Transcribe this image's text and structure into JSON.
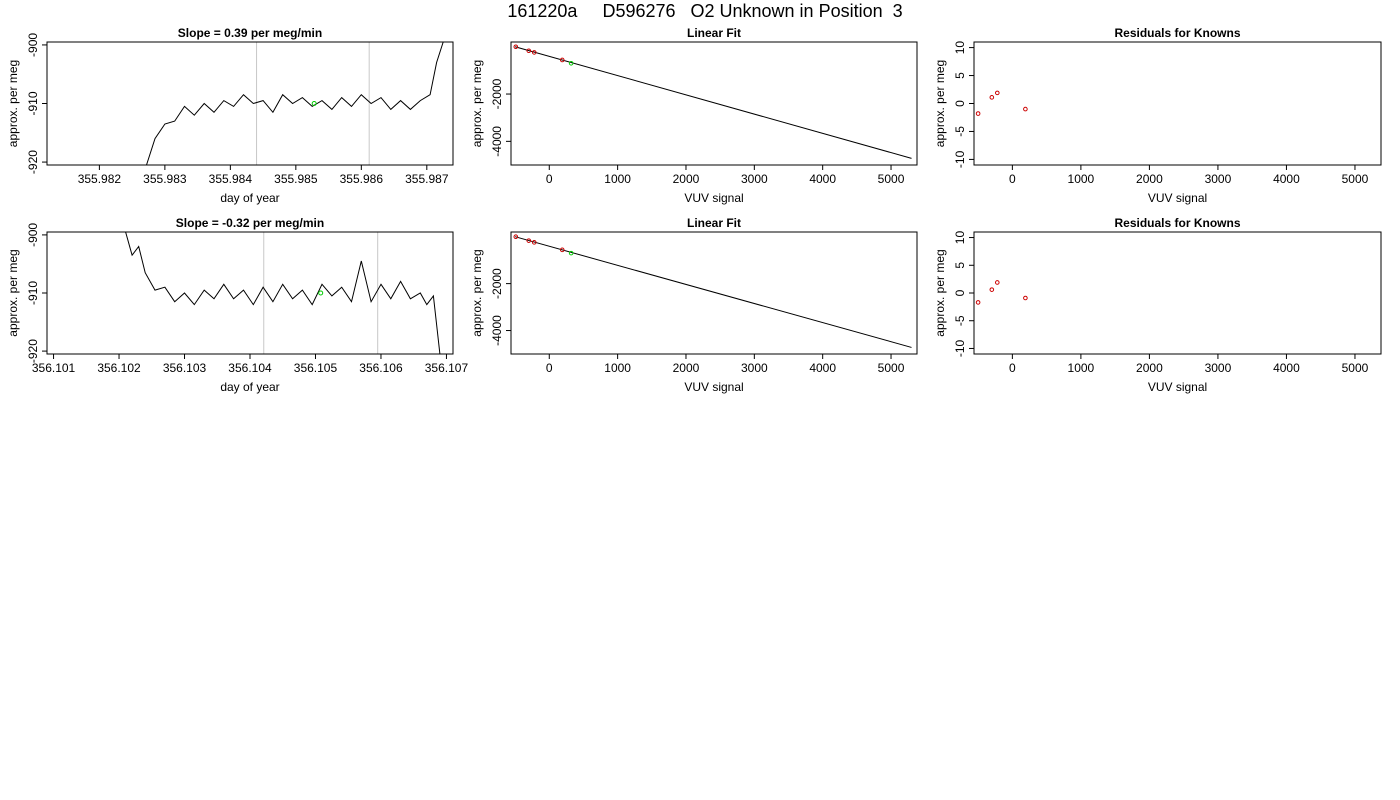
{
  "page": {
    "title": "161220a     D596276   O2 Unknown in Position  3"
  },
  "chart_data": [
    {
      "type": "line",
      "title": "Slope =  0.39  per meg/min",
      "xlabel": "day of year",
      "ylabel": "approx. per meg",
      "xlim": [
        355.9812,
        355.9874
      ],
      "ylim": [
        -920.5,
        -899.5
      ],
      "x_ticks": [
        355.982,
        355.983,
        355.984,
        355.985,
        355.986,
        355.987
      ],
      "x_tick_labels": [
        "355.982",
        "355.983",
        "355.984",
        "355.985",
        "355.986",
        "355.987"
      ],
      "y_ticks": [
        -920,
        -910,
        -900
      ],
      "y_tick_labels": [
        "-920",
        "-910",
        "-900"
      ],
      "vlines": [
        355.9844,
        355.98612
      ],
      "highlight_point": {
        "x": 355.98528,
        "y": -910
      },
      "series": [
        {
          "values_x": [
            355.98272,
            355.98285,
            355.983,
            355.98315,
            355.9833,
            355.98345,
            355.9836,
            355.98375,
            355.9839,
            355.98405,
            355.9842,
            355.98435,
            355.9845,
            355.98465,
            355.9848,
            355.98495,
            355.9851,
            355.98525,
            355.9854,
            355.98555,
            355.9857,
            355.98585,
            355.986,
            355.98615,
            355.9863,
            355.98645,
            355.9866,
            355.98675,
            355.9869,
            355.98705,
            355.98715,
            355.98725
          ],
          "values_y": [
            -920.5,
            -916,
            -913.5,
            -913,
            -910.5,
            -912,
            -910,
            -911.5,
            -909.5,
            -910.5,
            -908.5,
            -910,
            -909.5,
            -911.5,
            -908.5,
            -910,
            -909,
            -910.5,
            -909.5,
            -911,
            -909,
            -910.5,
            -908.5,
            -910,
            -909,
            -911,
            -909.5,
            -911,
            -909.5,
            -908.5,
            -903,
            -899.5
          ]
        }
      ]
    },
    {
      "type": "scatter",
      "title": "Linear Fit",
      "xlabel": "VUV signal",
      "ylabel": "approx. per meg",
      "xlim": [
        -560,
        5380
      ],
      "ylim": [
        -5000,
        200
      ],
      "x_ticks": [
        0,
        1000,
        2000,
        3000,
        4000,
        5000
      ],
      "x_tick_labels": [
        "0",
        "1000",
        "2000",
        "3000",
        "4000",
        "5000"
      ],
      "y_ticks": [
        -4000,
        -2000
      ],
      "y_tick_labels": [
        "-4000",
        "-2000"
      ],
      "fit_line": [
        [
          -500,
          0
        ],
        [
          5300,
          -4720
        ]
      ],
      "known_points": {
        "x": [
          -490,
          -300,
          -220,
          190
        ],
        "y": [
          -1,
          -170,
          -240,
          -560
        ]
      },
      "unknown_point": {
        "x": 320,
        "y": -700
      }
    },
    {
      "type": "scatter",
      "title": "Residuals for Knowns",
      "xlabel": "VUV signal",
      "ylabel": "approx. per meg",
      "xlim": [
        -560,
        5380
      ],
      "ylim": [
        -11,
        11
      ],
      "x_ticks": [
        0,
        1000,
        2000,
        3000,
        4000,
        5000
      ],
      "x_tick_labels": [
        "0",
        "1000",
        "2000",
        "3000",
        "4000",
        "5000"
      ],
      "y_ticks": [
        -10,
        -5,
        0,
        5,
        10
      ],
      "y_tick_labels": [
        "-10",
        "-5",
        "0",
        "5",
        "10"
      ],
      "known_points": {
        "x": [
          -500,
          -300,
          -220,
          190
        ],
        "y": [
          -1.8,
          1.1,
          1.9,
          -1.0
        ]
      }
    },
    {
      "type": "line",
      "title": "Slope =  -0.32  per meg/min",
      "xlabel": "day of year",
      "ylabel": "approx. per meg",
      "xlim": [
        356.1009,
        356.1071
      ],
      "ylim": [
        -920.5,
        -899.5
      ],
      "x_ticks": [
        356.101,
        356.102,
        356.103,
        356.104,
        356.105,
        356.106,
        356.107
      ],
      "x_tick_labels": [
        "356.101",
        "356.102",
        "356.103",
        "356.104",
        "356.105",
        "356.106",
        "356.107"
      ],
      "y_ticks": [
        -920,
        -910,
        -900
      ],
      "y_tick_labels": [
        "-920",
        "-910",
        "-900"
      ],
      "vlines": [
        356.10421,
        356.10595
      ],
      "highlight_point": {
        "x": 356.10508,
        "y": -910
      },
      "series": [
        {
          "values_x": [
            356.1021,
            356.1022,
            356.1023,
            356.1024,
            356.10255,
            356.1027,
            356.10285,
            356.103,
            356.10315,
            356.1033,
            356.10345,
            356.1036,
            356.10375,
            356.1039,
            356.10405,
            356.1042,
            356.10435,
            356.1045,
            356.10465,
            356.1048,
            356.10495,
            356.1051,
            356.10525,
            356.1054,
            356.10555,
            356.1057,
            356.10585,
            356.106,
            356.10615,
            356.1063,
            356.10645,
            356.1066,
            356.1067,
            356.1068,
            356.1069
          ],
          "values_y": [
            -899.5,
            -903.5,
            -902,
            -906.5,
            -909.5,
            -909,
            -911.5,
            -910,
            -912,
            -909.5,
            -911,
            -908.5,
            -911,
            -909.5,
            -912,
            -909,
            -911.5,
            -908.5,
            -911,
            -909.5,
            -912,
            -908.5,
            -910.5,
            -909,
            -911.5,
            -904.5,
            -911.5,
            -908.5,
            -911,
            -908,
            -911,
            -910,
            -912,
            -910.5,
            -920.5
          ]
        }
      ]
    },
    {
      "type": "scatter",
      "title": "Linear Fit",
      "xlabel": "VUV signal",
      "ylabel": "approx. per meg",
      "xlim": [
        -560,
        5380
      ],
      "ylim": [
        -5000,
        200
      ],
      "x_ticks": [
        0,
        1000,
        2000,
        3000,
        4000,
        5000
      ],
      "x_tick_labels": [
        "0",
        "1000",
        "2000",
        "3000",
        "4000",
        "5000"
      ],
      "y_ticks": [
        -4000,
        -2000
      ],
      "y_tick_labels": [
        "-4000",
        "-2000"
      ],
      "fit_line": [
        [
          -500,
          0
        ],
        [
          5300,
          -4720
        ]
      ],
      "known_points": {
        "x": [
          -490,
          -300,
          -220,
          190
        ],
        "y": [
          -1,
          -170,
          -240,
          -560
        ]
      },
      "unknown_point": {
        "x": 320,
        "y": -700
      }
    },
    {
      "type": "scatter",
      "title": "Residuals for Knowns",
      "xlabel": "VUV signal",
      "ylabel": "approx. per meg",
      "xlim": [
        -560,
        5380
      ],
      "ylim": [
        -11,
        11
      ],
      "x_ticks": [
        0,
        1000,
        2000,
        3000,
        4000,
        5000
      ],
      "x_tick_labels": [
        "0",
        "1000",
        "2000",
        "3000",
        "4000",
        "5000"
      ],
      "y_ticks": [
        -10,
        -5,
        0,
        5,
        10
      ],
      "y_tick_labels": [
        "-10",
        "-5",
        "0",
        "5",
        "10"
      ],
      "known_points": {
        "x": [
          -500,
          -300,
          -220,
          190
        ],
        "y": [
          -1.7,
          0.6,
          1.9,
          -0.9
        ]
      }
    }
  ]
}
